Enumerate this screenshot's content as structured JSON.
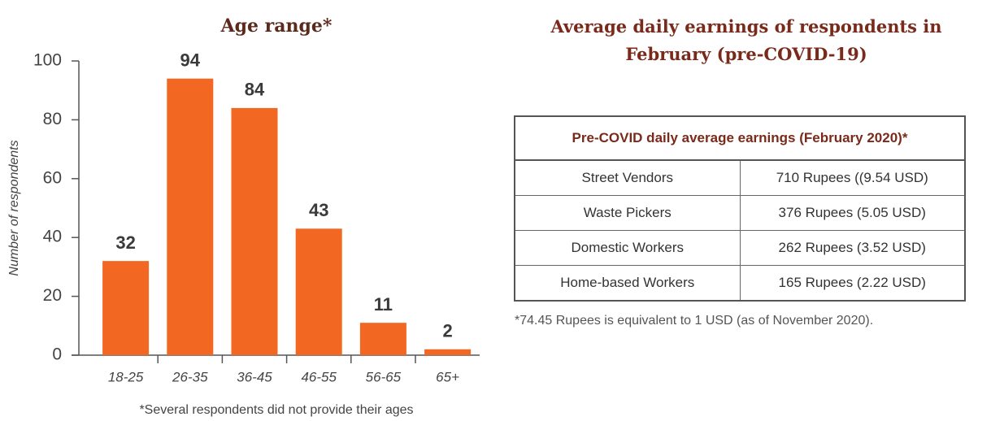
{
  "chart_data": {
    "type": "bar",
    "title": "Age range*",
    "y_label": "Number of respondents",
    "note": "*Several respondents did not provide their ages",
    "categories": [
      "18-25",
      "26-35",
      "36-45",
      "46-55",
      "56-65",
      "65+"
    ],
    "values": [
      32,
      94,
      84,
      43,
      11,
      2
    ],
    "color": "#f26722",
    "ylim": [
      0,
      100
    ],
    "yticks": [
      0,
      20,
      40,
      60,
      80,
      100
    ]
  },
  "table": {
    "title": "Average daily earnings of respondents in February (pre-COVID-19)",
    "header": "Pre-COVID daily average earnings  (February 2020)*",
    "rows": [
      [
        "Street Vendors",
        "710 Rupees ((9.54 USD)"
      ],
      [
        "Waste Pickers",
        "376 Rupees (5.05 USD)"
      ],
      [
        "Domestic Workers",
        "262 Rupees (3.52 USD)"
      ],
      [
        "Home-based Workers",
        "165 Rupees (2.22 USD)"
      ]
    ],
    "note": "*74.45 Rupees is equivalent to 1 USD (as of November 2020)."
  }
}
